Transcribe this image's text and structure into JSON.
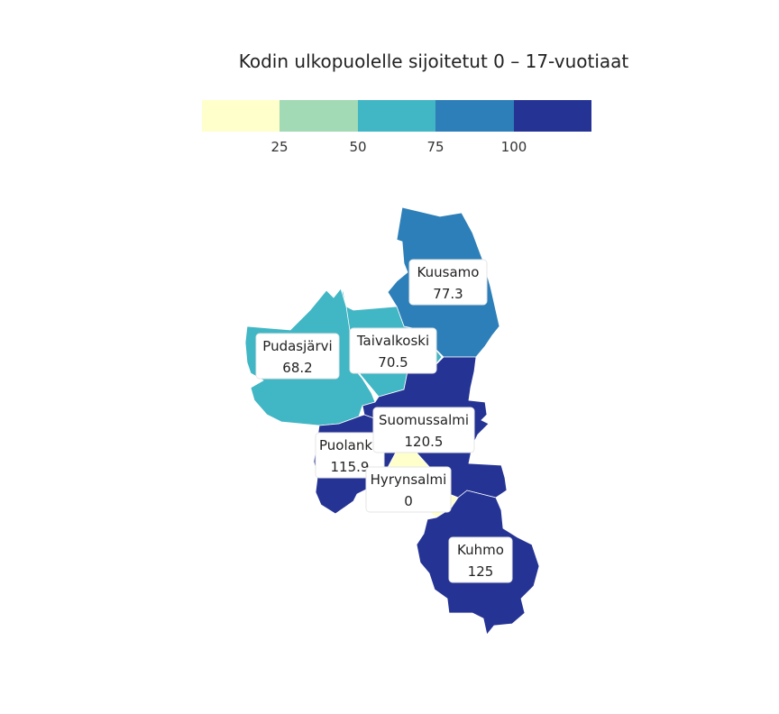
{
  "map": {
    "title": "Kodin ulkopuolelle sijoitetut 0 – 17-vuotiaat",
    "legend": {
      "colors": [
        "#ffffcc",
        "#a1dab4",
        "#41b6c4",
        "#2c7fb8",
        "#253494"
      ],
      "ticks": [
        "25",
        "50",
        "75",
        "100"
      ]
    },
    "regions": [
      {
        "name": "Kuusamo",
        "value": "77.3",
        "color": "#2c7fb8"
      },
      {
        "name": "Taivalkoski",
        "value": "70.5",
        "color": "#41b6c4"
      },
      {
        "name": "Pudasjärvi",
        "value": "68.2",
        "color": "#41b6c4"
      },
      {
        "name": "Suomussalmi",
        "value": "120.5",
        "color": "#253494"
      },
      {
        "name": "Puolanka",
        "value": "115.9",
        "color": "#253494"
      },
      {
        "name": "Hyrynsalmi",
        "value": "0",
        "color": "#ffffcc"
      },
      {
        "name": "Kuhmo",
        "value": "125",
        "color": "#253494"
      }
    ]
  }
}
